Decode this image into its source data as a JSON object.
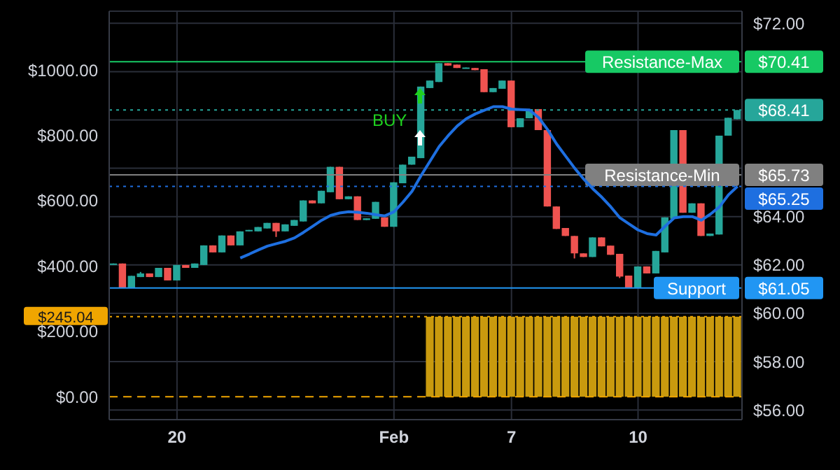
{
  "chart_data": {
    "type": "candlestick",
    "categories": [
      null,
      null,
      null,
      null,
      null,
      null,
      null,
      "20",
      null,
      null,
      null,
      null,
      null,
      null,
      null,
      null,
      null,
      null,
      null,
      null,
      null,
      null,
      null,
      null,
      null,
      null,
      null,
      null,
      null,
      null,
      null,
      "Feb",
      null,
      null,
      null,
      null,
      null,
      null,
      null,
      null,
      null,
      null,
      null,
      null,
      "7",
      null,
      null,
      null,
      null,
      null,
      null,
      null,
      null,
      null,
      null,
      null,
      null,
      null,
      "10",
      null,
      null,
      null,
      null,
      null,
      null,
      null,
      null,
      null,
      null,
      null
    ],
    "ohlc": [
      [
        62.02,
        62.06,
        62.02,
        62.06
      ],
      [
        62.06,
        62.06,
        61.07,
        61.07
      ],
      [
        61.07,
        61.55,
        61.07,
        61.55
      ],
      [
        61.5,
        61.71,
        61.5,
        61.65
      ],
      [
        61.65,
        61.65,
        61.5,
        61.5
      ],
      [
        61.5,
        61.88,
        61.5,
        61.88
      ],
      [
        61.88,
        61.88,
        61.36,
        61.36
      ],
      [
        61.36,
        62.0,
        61.36,
        62.0
      ],
      [
        62.0,
        62.0,
        61.88,
        61.88
      ],
      [
        61.88,
        62.06,
        61.88,
        62.06
      ],
      [
        62.0,
        62.81,
        62.0,
        62.81
      ],
      [
        62.81,
        62.81,
        62.52,
        62.52
      ],
      [
        62.52,
        63.22,
        62.52,
        63.22
      ],
      [
        63.22,
        63.22,
        62.81,
        62.81
      ],
      [
        62.81,
        63.39,
        62.81,
        63.39
      ],
      [
        63.39,
        63.45,
        63.39,
        63.45
      ],
      [
        63.39,
        63.57,
        63.39,
        63.57
      ],
      [
        63.51,
        63.74,
        63.51,
        63.74
      ],
      [
        63.74,
        63.74,
        63.16,
        63.39
      ],
      [
        63.39,
        63.68,
        63.39,
        63.68
      ],
      [
        63.62,
        63.86,
        63.62,
        63.86
      ],
      [
        63.8,
        64.67,
        63.8,
        64.67
      ],
      [
        64.67,
        64.67,
        64.55,
        64.55
      ],
      [
        64.55,
        65.07,
        64.55,
        65.07
      ],
      [
        65.01,
        66.06,
        65.01,
        66.06
      ],
      [
        66.06,
        66.06,
        64.72,
        64.72
      ],
      [
        64.72,
        64.84,
        64.72,
        64.84
      ],
      [
        64.84,
        64.84,
        63.86,
        63.86
      ],
      [
        63.86,
        63.93,
        63.86,
        63.93
      ],
      [
        63.91,
        64.61,
        63.91,
        64.61
      ],
      [
        63.97,
        63.97,
        63.58,
        63.58
      ],
      [
        63.58,
        65.42,
        63.58,
        65.42
      ],
      [
        65.38,
        66.15,
        65.38,
        66.15
      ],
      [
        66.15,
        66.48,
        66.15,
        66.48
      ],
      [
        66.42,
        69.38,
        66.42,
        69.38
      ],
      [
        69.32,
        69.63,
        69.32,
        69.63
      ],
      [
        69.57,
        70.35,
        69.57,
        70.35
      ],
      [
        70.35,
        70.35,
        70.25,
        70.25
      ],
      [
        70.29,
        70.29,
        70.15,
        70.15
      ],
      [
        70.13,
        70.17,
        70.13,
        70.17
      ],
      [
        70.15,
        70.15,
        70.06,
        70.06
      ],
      [
        70.1,
        70.1,
        69.15,
        69.15
      ],
      [
        69.15,
        69.32,
        69.15,
        69.32
      ],
      [
        69.29,
        69.63,
        69.29,
        69.63
      ],
      [
        69.63,
        69.63,
        67.7,
        67.7
      ],
      [
        67.7,
        68.07,
        67.7,
        68.07
      ],
      [
        68.07,
        68.45,
        68.07,
        68.45
      ],
      [
        68.45,
        68.45,
        67.58,
        67.58
      ],
      [
        67.58,
        67.58,
        64.42,
        64.42
      ],
      [
        64.42,
        64.42,
        63.49,
        63.49
      ],
      [
        63.53,
        63.53,
        63.2,
        63.2
      ],
      [
        63.2,
        63.2,
        62.27,
        62.48
      ],
      [
        62.48,
        62.48,
        62.33,
        62.33
      ],
      [
        62.33,
        63.14,
        62.33,
        63.14
      ],
      [
        63.14,
        63.14,
        62.77,
        62.77
      ],
      [
        62.8,
        62.8,
        62.42,
        62.42
      ],
      [
        62.46,
        62.46,
        61.46,
        61.52
      ],
      [
        61.56,
        61.56,
        61.07,
        61.07
      ],
      [
        61.07,
        61.94,
        61.07,
        61.94
      ],
      [
        61.94,
        61.94,
        61.65,
        61.65
      ],
      [
        61.65,
        62.58,
        61.65,
        62.58
      ],
      [
        62.52,
        63.97,
        62.52,
        63.97
      ],
      [
        63.91,
        67.58,
        63.91,
        67.58
      ],
      [
        67.58,
        67.58,
        64.16,
        64.16
      ],
      [
        64.16,
        64.55,
        64.16,
        64.55
      ],
      [
        64.55,
        64.55,
        63.2,
        63.2
      ],
      [
        63.2,
        63.3,
        63.2,
        63.3
      ],
      [
        63.26,
        67.35,
        63.26,
        67.35
      ],
      [
        67.35,
        68.09,
        67.35,
        68.09
      ],
      [
        68.03,
        68.41,
        68.03,
        68.41
      ]
    ],
    "colors": [
      "#26a69a",
      "#ef5350",
      "#26a69a",
      "#26a69a",
      "#ef5350",
      "#26a69a",
      "#ef5350",
      "#26a69a",
      "#ef5350",
      "#26a69a",
      "#26a69a",
      "#ef5350",
      "#26a69a",
      "#ef5350",
      "#26a69a",
      "#26a69a",
      "#26a69a",
      "#26a69a",
      "#ef5350",
      "#26a69a",
      "#26a69a",
      "#26a69a",
      "#ef5350",
      "#26a69a",
      "#26a69a",
      "#ef5350",
      "#26a69a",
      "#ef5350",
      "#26a69a",
      "#26a69a",
      "#ef5350",
      "#26a69a",
      "#26a69a",
      "#26a69a",
      "#26a69a",
      "#26a69a",
      "#26a69a",
      "#ef5350",
      "#ef5350",
      "#26a69a",
      "#ef5350",
      "#ef5350",
      "#26a69a",
      "#26a69a",
      "#ef5350",
      "#26a69a",
      "#26a69a",
      "#ef5350",
      "#ef5350",
      "#ef5350",
      "#ef5350",
      "#ef5350",
      "#ef5350",
      "#26a69a",
      "#ef5350",
      "#ef5350",
      "#ef5350",
      "#ef5350",
      "#26a69a",
      "#ef5350",
      "#26a69a",
      "#26a69a",
      "#26a69a",
      "#ef5350",
      "#26a69a",
      "#ef5350",
      "#26a69a",
      "#26a69a",
      "#26a69a",
      "#26a69a"
    ],
    "series": [
      {
        "type": "line",
        "color": "#1e6fe0",
        "values": [
          null,
          null,
          null,
          null,
          null,
          null,
          null,
          null,
          null,
          null,
          null,
          null,
          null,
          null,
          62.29,
          62.45,
          62.62,
          62.78,
          62.88,
          62.98,
          63.12,
          63.35,
          63.6,
          63.85,
          64.05,
          64.15,
          64.2,
          64.18,
          64.14,
          64.08,
          64.03,
          64.2,
          64.6,
          65.05,
          65.7,
          66.3,
          66.9,
          67.35,
          67.75,
          68.05,
          68.25,
          68.4,
          68.55,
          68.55,
          68.45,
          68.43,
          68.41,
          68.1,
          67.6,
          67.0,
          66.5,
          66.0,
          65.55,
          65.15,
          64.8,
          64.4,
          63.95,
          63.7,
          63.45,
          63.3,
          63.24,
          63.6,
          63.95,
          64.0,
          64.0,
          63.85,
          64.1,
          64.4,
          64.9,
          65.25
        ]
      },
      {
        "type": "bar",
        "axis": "y2",
        "color": "#c99a0e",
        "values": [
          null,
          null,
          null,
          null,
          null,
          null,
          null,
          null,
          null,
          null,
          null,
          null,
          null,
          null,
          null,
          null,
          null,
          null,
          null,
          null,
          null,
          null,
          null,
          null,
          null,
          null,
          null,
          null,
          null,
          null,
          null,
          null,
          null,
          null,
          null,
          245.04,
          245.04,
          245.04,
          245.04,
          245.04,
          245.04,
          245.04,
          245.04,
          245.04,
          245.04,
          245.04,
          245.04,
          245.04,
          245.04,
          245.04,
          245.04,
          245.04,
          245.04,
          245.04,
          245.04,
          245.04,
          245.04,
          245.04,
          245.04,
          245.04,
          245.04,
          245.04,
          245.04,
          245.04,
          245.04,
          245.04,
          245.04,
          245.04,
          245.04,
          245.04
        ]
      }
    ],
    "ylim": [
      55.6,
      72.5
    ],
    "yticks": [
      {
        "value": 56,
        "label": "$56.00"
      },
      {
        "value": 58,
        "label": "$58.00"
      },
      {
        "value": 60,
        "label": "$60.00"
      },
      {
        "value": 62,
        "label": "$62.00"
      },
      {
        "value": 64,
        "label": "$64.00"
      },
      {
        "value": 66,
        "label": null
      },
      {
        "value": 68,
        "label": null
      },
      {
        "value": 70,
        "label": null
      },
      {
        "value": 72,
        "label": "$72.00"
      }
    ],
    "y2lim": [
      -70,
      1180
    ],
    "y2ticks": [
      {
        "value": 0,
        "label": "$0.00"
      },
      {
        "value": 200,
        "label": "$200.00"
      },
      {
        "value": 400,
        "label": "$400.00"
      },
      {
        "value": 600,
        "label": "$600.00"
      },
      {
        "value": 800,
        "label": "$800.00"
      },
      {
        "value": 1000,
        "label": "$1000.00"
      }
    ],
    "ref_lines": [
      {
        "axis": "y",
        "value": 70.41,
        "label": "$70.41",
        "color": "#17c964",
        "line_style": "solid"
      },
      {
        "axis": "y",
        "value": 68.41,
        "label": "$68.41",
        "color": "#26a69a",
        "line_style": "dotted"
      },
      {
        "axis": "y",
        "value": 65.73,
        "label": "$65.73",
        "color": "#808080",
        "line_style": "solid"
      },
      {
        "axis": "y",
        "value": 65.25,
        "label": "$65.25",
        "color": "#1e6fe0",
        "line_style": "dotted"
      },
      {
        "axis": "y",
        "value": 61.05,
        "label": "$61.05",
        "color": "#2196f3",
        "line_style": "solid"
      },
      {
        "axis": "y2",
        "value": 245.04,
        "label": "$245.04",
        "color": "#f0a500",
        "line_style": "dotted"
      },
      {
        "axis": "y2",
        "value": 0,
        "label": null,
        "color": "#f0a500",
        "line_style": "dashed"
      }
    ],
    "annotations": [
      "BUY",
      {
        "text": "Resistance-Max",
        "y": 70.41
      },
      {
        "text": "Resistance-Min",
        "y": 65.73
      },
      {
        "text": "Support",
        "y": 61.05
      }
    ],
    "grid": true
  }
}
